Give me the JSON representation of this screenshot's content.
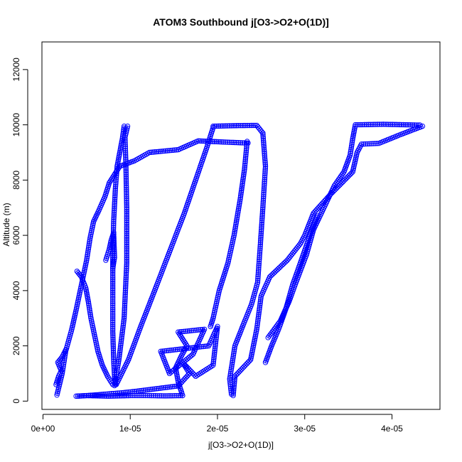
{
  "chart_data": {
    "type": "scatter",
    "title": "ATOM3 Southbound j[O3->O2+O(1D)]",
    "xlabel": "j[O3->O2+O(1D)]",
    "ylabel": "Altitude (m)",
    "xlim": [
      -1.2e-07,
      4.55e-05
    ],
    "ylim": [
      -300,
      13000
    ],
    "xticks": [
      0,
      1e-05,
      2e-05,
      3e-05,
      4e-05
    ],
    "xtick_labels": [
      "0e+00",
      "1e-05",
      "2e-05",
      "3e-05",
      "4e-05"
    ],
    "yticks": [
      0,
      2000,
      4000,
      6000,
      8000,
      10000,
      12000
    ],
    "ytick_labels": [
      "0",
      "2000",
      "4000",
      "6000",
      "8000",
      "10000",
      "12000"
    ],
    "grid": false,
    "marker": "open-circle",
    "color": "#0000ff",
    "series": [
      {
        "values": [
          [
            1.6e-06,
            220
          ],
          [
            2.2e-06,
            1000
          ],
          [
            2.6e-06,
            1800
          ],
          [
            3.3e-06,
            2600
          ],
          [
            3.8e-06,
            3300
          ],
          [
            4.4e-06,
            4200
          ],
          [
            5e-06,
            5100
          ],
          [
            5.4e-06,
            5900
          ],
          [
            5.8e-06,
            6500
          ],
          [
            6.4e-06,
            6900
          ],
          [
            7.1e-06,
            7400
          ],
          [
            7.6e-06,
            7900
          ],
          [
            8.8e-06,
            8500
          ],
          [
            1.05e-05,
            8700
          ],
          [
            1.22e-05,
            9000
          ],
          [
            1.55e-05,
            9100
          ],
          [
            1.78e-05,
            9420
          ],
          [
            2.05e-05,
            9380
          ],
          [
            2.35e-05,
            9340
          ]
        ]
      },
      {
        "values": [
          [
            9.3e-06,
            9950
          ],
          [
            9.1e-06,
            9500
          ],
          [
            8.8e-06,
            9000
          ],
          [
            8.5e-06,
            8500
          ],
          [
            8.3e-06,
            7700
          ],
          [
            8.1e-06,
            6500
          ],
          [
            8e-06,
            5200
          ],
          [
            8e-06,
            3800
          ],
          [
            8e-06,
            2500
          ],
          [
            8.1e-06,
            1500
          ],
          [
            8.2e-06,
            900
          ],
          [
            8.3e-06,
            600
          ]
        ]
      },
      {
        "values": [
          [
            8.2e-06,
            560
          ],
          [
            8.7e-06,
            1500
          ],
          [
            9.3e-06,
            3000
          ],
          [
            9.6e-06,
            5000
          ],
          [
            9.6e-06,
            7000
          ],
          [
            9.5e-06,
            8600
          ],
          [
            9.4e-06,
            9550
          ],
          [
            9.7e-06,
            9950
          ]
        ]
      },
      {
        "values": [
          [
            8.4e-06,
            600
          ],
          [
            9.8e-06,
            1500
          ],
          [
            1.12e-05,
            2700
          ],
          [
            1.28e-05,
            4000
          ],
          [
            1.45e-05,
            5400
          ],
          [
            1.62e-05,
            6800
          ],
          [
            1.75e-05,
            8000
          ],
          [
            1.88e-05,
            9200
          ],
          [
            1.95e-05,
            9900
          ]
        ]
      },
      {
        "values": [
          [
            1.95e-05,
            9950
          ],
          [
            2.2e-05,
            9970
          ],
          [
            2.45e-05,
            9980
          ],
          [
            2.52e-05,
            9700
          ]
        ]
      },
      {
        "values": [
          [
            2.52e-05,
            9700
          ],
          [
            2.55e-05,
            8500
          ],
          [
            2.52e-05,
            7000
          ],
          [
            2.49e-05,
            5600
          ],
          [
            2.46e-05,
            4300
          ],
          [
            2.39e-05,
            3500
          ],
          [
            2.3e-05,
            2800
          ],
          [
            2.2e-05,
            2000
          ],
          [
            2.14e-05,
            800
          ],
          [
            2.16e-05,
            250
          ]
        ]
      },
      {
        "values": [
          [
            2.34e-05,
            9400
          ],
          [
            2.31e-05,
            8400
          ],
          [
            2.26e-05,
            7300
          ],
          [
            2.19e-05,
            6000
          ],
          [
            2.12e-05,
            5000
          ],
          [
            2.02e-05,
            4000
          ],
          [
            1.95e-05,
            3000
          ],
          [
            1.92e-05,
            2700
          ]
        ]
      },
      {
        "values": [
          [
            2.18e-05,
            200
          ],
          [
            2.2e-05,
            900
          ],
          [
            2.38e-05,
            1500
          ],
          [
            2.45e-05,
            2600
          ],
          [
            2.5e-05,
            3800
          ],
          [
            2.6e-05,
            4500
          ],
          [
            2.8e-05,
            5100
          ],
          [
            2.95e-05,
            5700
          ],
          [
            3e-05,
            6000
          ],
          [
            3.1e-05,
            6800
          ],
          [
            3.3e-05,
            7500
          ],
          [
            3.55e-05,
            8300
          ],
          [
            3.6e-05,
            9000
          ],
          [
            3.65e-05,
            9300
          ],
          [
            3.85e-05,
            9330
          ],
          [
            4.1e-05,
            9650
          ],
          [
            4.35e-05,
            9950
          ]
        ]
      },
      {
        "values": [
          [
            2.58e-05,
            2300
          ],
          [
            2.72e-05,
            2900
          ],
          [
            2.82e-05,
            3600
          ],
          [
            2.9e-05,
            4300
          ],
          [
            3.02e-05,
            5300
          ],
          [
            3.1e-05,
            6200
          ],
          [
            3.22e-05,
            7000
          ],
          [
            3.34e-05,
            7800
          ],
          [
            3.45e-05,
            8300
          ],
          [
            3.52e-05,
            8900
          ],
          [
            3.55e-05,
            9500
          ],
          [
            3.58e-05,
            10000
          ],
          [
            3.9e-05,
            10020
          ],
          [
            4.32e-05,
            9990
          ]
        ]
      },
      {
        "values": [
          [
            2.55e-05,
            1400
          ],
          [
            2.62e-05,
            2000
          ],
          [
            2.7e-05,
            2600
          ],
          [
            2.78e-05,
            3300
          ],
          [
            2.86e-05,
            4200
          ],
          [
            2.95e-05,
            5000
          ],
          [
            3.06e-05,
            6000
          ],
          [
            3.15e-05,
            6700
          ]
        ]
      },
      {
        "values": [
          [
            3.8e-06,
            180
          ],
          [
            5e-06,
            200
          ],
          [
            7.5e-06,
            180
          ],
          [
            1e-05,
            200
          ],
          [
            1.2e-05,
            200
          ],
          [
            1.4e-05,
            190
          ],
          [
            1.6e-05,
            200
          ]
        ]
      },
      {
        "values": [
          [
            1.6e-05,
            200
          ],
          [
            1.55e-05,
            700
          ],
          [
            1.52e-05,
            1200
          ],
          [
            1.58e-05,
            1600
          ],
          [
            1.65e-05,
            2000
          ],
          [
            1.55e-05,
            2500
          ],
          [
            1.85e-05,
            2600
          ],
          [
            1.72e-05,
            1700
          ],
          [
            1.45e-05,
            1000
          ],
          [
            1.35e-05,
            1800
          ],
          [
            1.9e-05,
            2000
          ],
          [
            2e-05,
            2700
          ],
          [
            1.95e-05,
            1300
          ],
          [
            1.75e-05,
            900
          ],
          [
            1.6e-05,
            1400
          ],
          [
            1.68e-05,
            1000
          ],
          [
            1.55e-05,
            550
          ],
          [
            1.3e-05,
            450
          ],
          [
            1.05e-05,
            350
          ],
          [
            9e-06,
            300
          ],
          [
            7e-06,
            250
          ],
          [
            5e-06,
            200
          ],
          [
            4e-06,
            180
          ]
        ]
      },
      {
        "values": [
          [
            3.9e-06,
            4700
          ],
          [
            4.4e-06,
            4500
          ],
          [
            4.9e-06,
            4100
          ],
          [
            5.2e-06,
            3600
          ],
          [
            5.5e-06,
            3000
          ],
          [
            5.9e-06,
            2400
          ],
          [
            6.3e-06,
            1800
          ],
          [
            6.8e-06,
            1300
          ],
          [
            7.4e-06,
            900
          ],
          [
            8e-06,
            600
          ]
        ]
      },
      {
        "values": [
          [
            1.5e-06,
            600
          ],
          [
            1.8e-06,
            900
          ],
          [
            2.1e-06,
            1100
          ],
          [
            1.7e-06,
            1400
          ],
          [
            2.2e-06,
            1600
          ],
          [
            2.6e-06,
            1850
          ]
        ]
      },
      {
        "values": [
          [
            7.2e-06,
            5100
          ],
          [
            7.6e-06,
            5500
          ],
          [
            7.8e-06,
            5800
          ],
          [
            8.1e-06,
            6100
          ],
          [
            8.2e-06,
            5200
          ],
          [
            8e-06,
            4800
          ]
        ]
      }
    ]
  }
}
